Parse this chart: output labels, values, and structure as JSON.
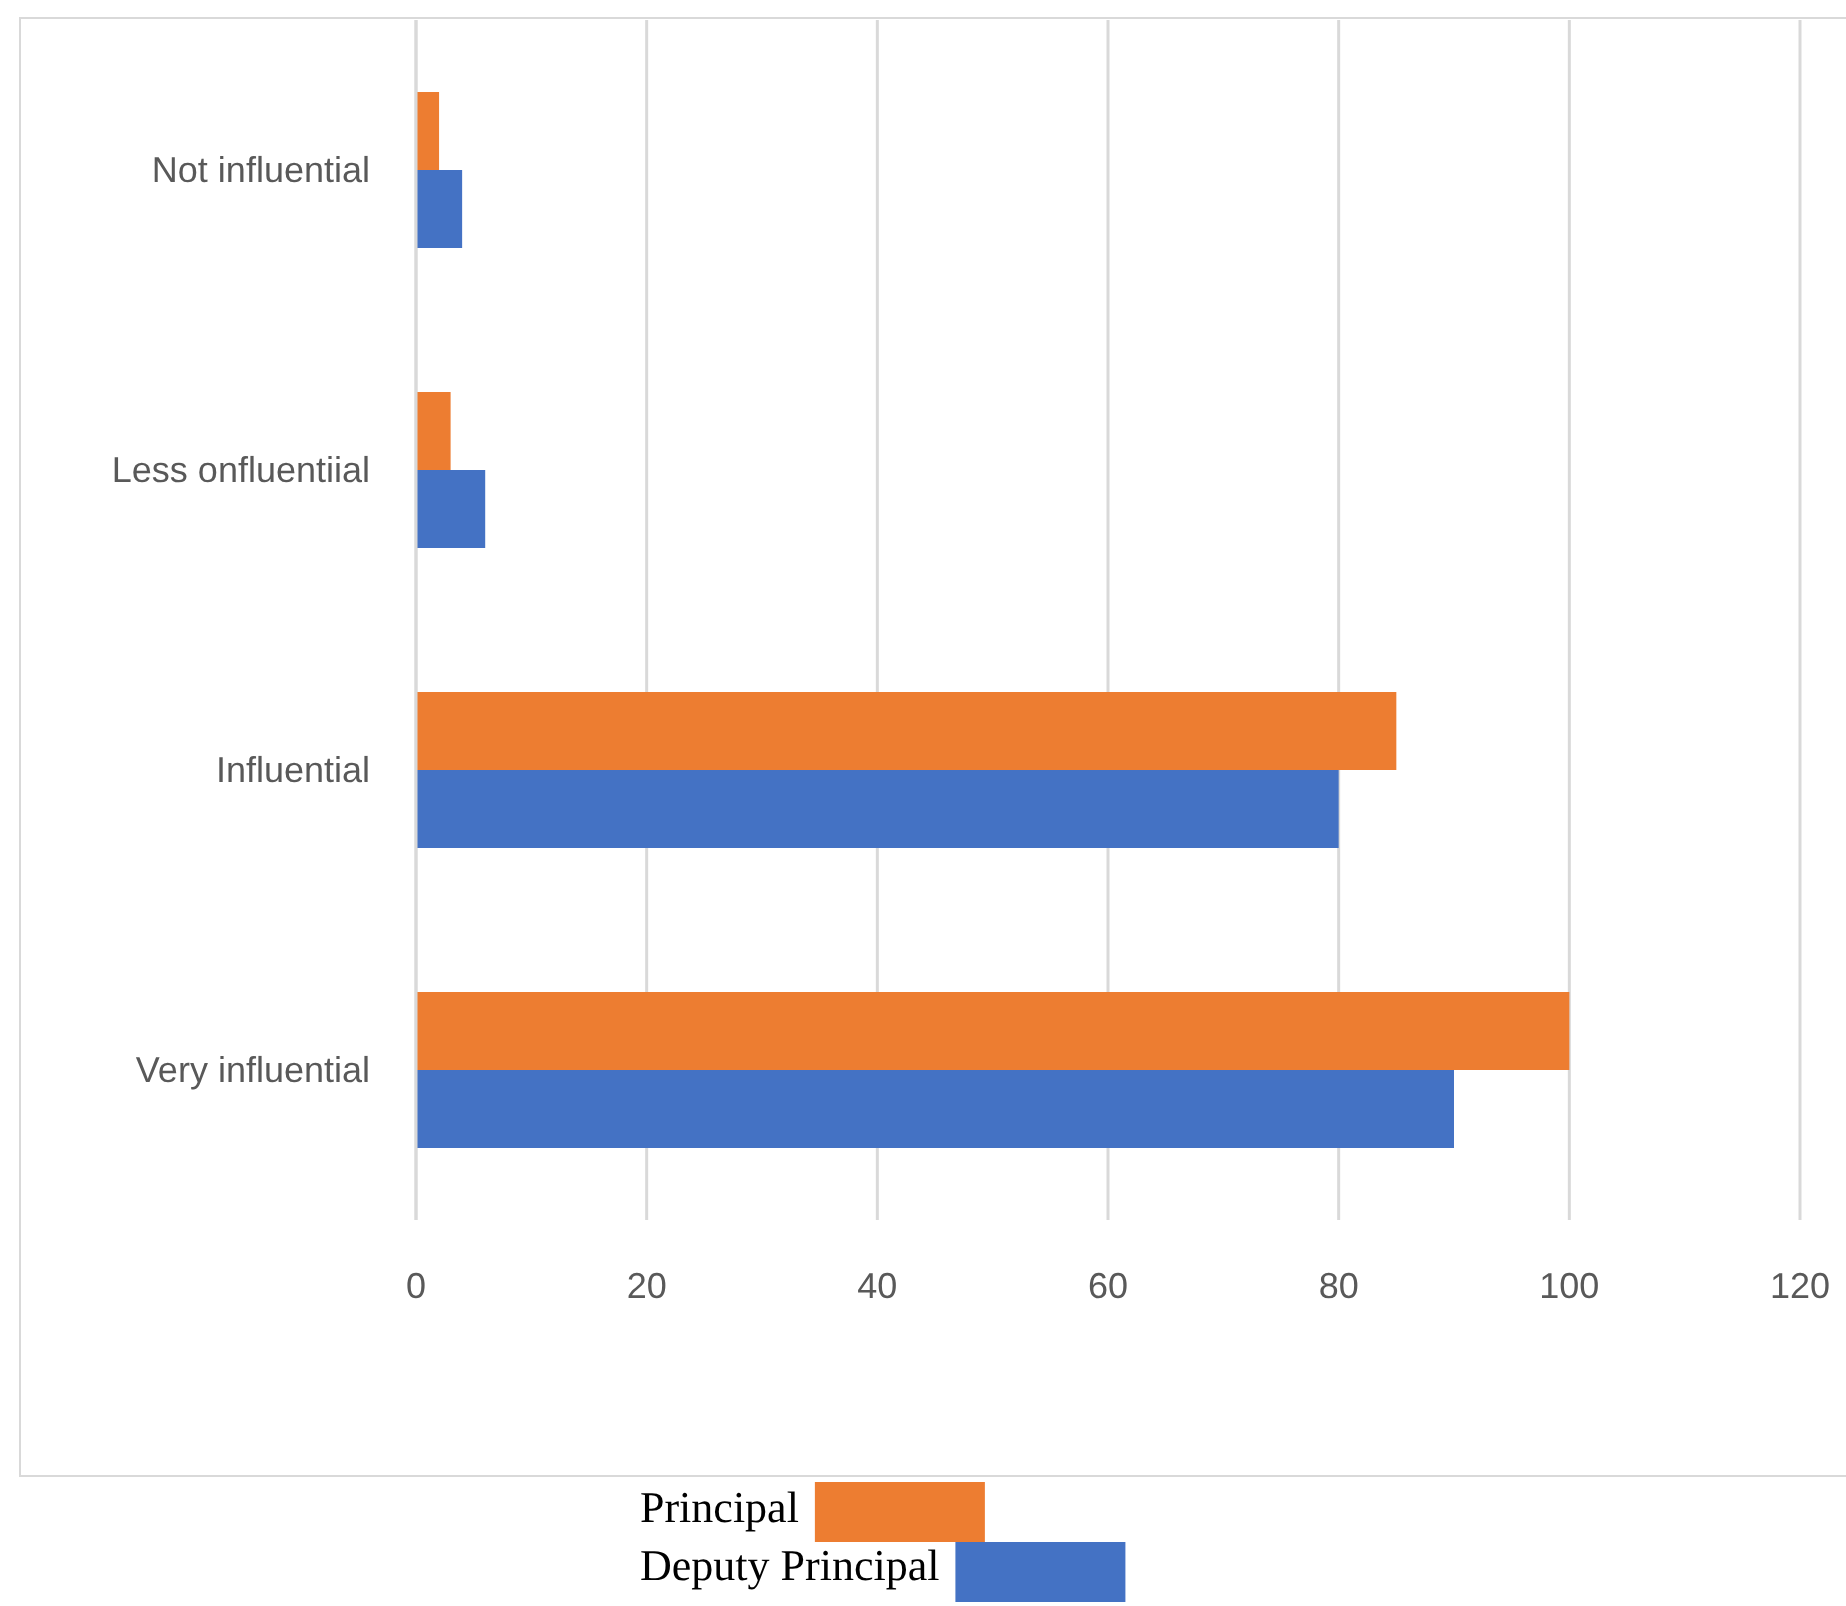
{
  "chart_data": {
    "type": "bar",
    "orientation": "horizontal",
    "categories": [
      "Not influential",
      "Less onfluentiial",
      "Influential",
      "Very influential"
    ],
    "series": [
      {
        "name": "Principal",
        "color": "#ed7d31",
        "values": [
          2,
          3,
          85,
          100
        ]
      },
      {
        "name": "Deputy Principal",
        "color": "#4472c4",
        "values": [
          4,
          6,
          80,
          90
        ]
      }
    ],
    "xlim": [
      0,
      120
    ],
    "xticks": [
      0,
      20,
      40,
      60,
      80,
      100,
      120
    ],
    "grid": "x",
    "legend": "bottom"
  }
}
